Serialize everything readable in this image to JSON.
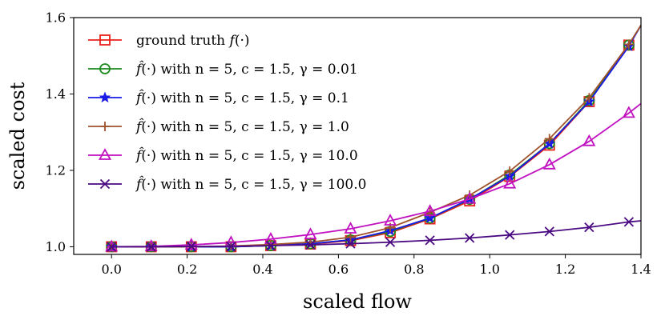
{
  "chart_data": {
    "type": "line",
    "title": "",
    "xlabel": "scaled flow",
    "ylabel": "scaled cost",
    "xlim": [
      -0.1,
      1.4
    ],
    "ylim": [
      0.98,
      1.6
    ],
    "x_ticks": [
      0.0,
      0.2,
      0.4,
      0.6,
      0.8,
      1.0,
      1.2,
      1.4
    ],
    "x_tick_labels": [
      "0.0",
      "0.2",
      "0.4",
      "0.6",
      "0.8",
      "1.0",
      "1.2",
      "1.4"
    ],
    "y_ticks": [
      1.0,
      1.2,
      1.4,
      1.6
    ],
    "y_tick_labels": [
      "1.0",
      "1.2",
      "1.4",
      "1.6"
    ],
    "legend_position": "top-left",
    "x": [
      0.0,
      0.105,
      0.211,
      0.316,
      0.421,
      0.526,
      0.632,
      0.737,
      0.842,
      0.947,
      1.053,
      1.158,
      1.263,
      1.368
    ],
    "series": [
      {
        "name": "ground truth f(·)",
        "legend": {
          "pre": "ground truth ",
          "italic": "f",
          "post": "(·)"
        },
        "color": "#e8221a",
        "marker": "square",
        "values": [
          1.0,
          1.0,
          1.0,
          1.0,
          1.003,
          1.007,
          1.016,
          1.037,
          1.073,
          1.12,
          1.184,
          1.266,
          1.38,
          1.528
        ],
        "line_extends_to": [
          1.4,
          1.58
        ]
      },
      {
        "name": "f̂(·) with n = 5, c = 1.5, γ = 0.01",
        "legend": {
          "pre": "",
          "italic": "f̂",
          "post": "(·) with n = 5, c = 1.5, γ = 0.01"
        },
        "color": "#1a8a1a",
        "marker": "circle",
        "values": [
          1.0,
          1.0,
          1.0,
          1.0,
          1.003,
          1.008,
          1.018,
          1.04,
          1.075,
          1.124,
          1.188,
          1.27,
          1.383,
          1.528
        ],
        "line_extends_to": [
          1.4,
          1.58
        ]
      },
      {
        "name": "f̂(·) with n = 5, c = 1.5, γ = 0.1",
        "legend": {
          "pre": "",
          "italic": "f̂",
          "post": "(·) with n = 5, c = 1.5, γ = 0.1"
        },
        "color": "#1a1ae6",
        "marker": "star",
        "values": [
          1.0,
          1.0,
          1.0,
          1.0,
          1.003,
          1.008,
          1.018,
          1.042,
          1.075,
          1.125,
          1.185,
          1.27,
          1.38,
          1.525
        ],
        "line_extends_to": [
          1.4,
          1.58
        ]
      },
      {
        "name": "f̂(·) with n = 5, c = 1.5, γ = 1.0",
        "legend": {
          "pre": "",
          "italic": "f̂",
          "post": "(·) with n = 5, c = 1.5, γ = 1.0"
        },
        "color": "#a0522d",
        "marker": "plus",
        "values": [
          1.0,
          1.0,
          1.0,
          1.002,
          1.006,
          1.012,
          1.025,
          1.05,
          1.09,
          1.135,
          1.198,
          1.283,
          1.39,
          1.53
        ],
        "line_extends_to": [
          1.4,
          1.58
        ]
      },
      {
        "name": "f̂(·) with n = 5, c = 1.5, γ = 10.0",
        "legend": {
          "pre": "",
          "italic": "f̂",
          "post": "(·) with n = 5, c = 1.5, γ = 10.0"
        },
        "color": "#c010c0",
        "marker": "triangle",
        "values": [
          1.0,
          1.001,
          1.005,
          1.011,
          1.02,
          1.032,
          1.047,
          1.068,
          1.093,
          1.125,
          1.165,
          1.215,
          1.276,
          1.35
        ],
        "line_extends_to": [
          1.4,
          1.375
        ]
      },
      {
        "name": "f̂(·) with n = 5, c = 1.5, γ = 100.0",
        "legend": {
          "pre": "",
          "italic": "f̂",
          "post": "(·) with n = 5, c = 1.5, γ = 100.0"
        },
        "color": "#4b0a82",
        "marker": "x",
        "values": [
          1.0,
          1.0,
          1.001,
          1.001,
          1.003,
          1.005,
          1.008,
          1.012,
          1.017,
          1.023,
          1.031,
          1.04,
          1.051,
          1.065
        ],
        "line_extends_to": [
          1.4,
          1.068
        ]
      }
    ]
  }
}
